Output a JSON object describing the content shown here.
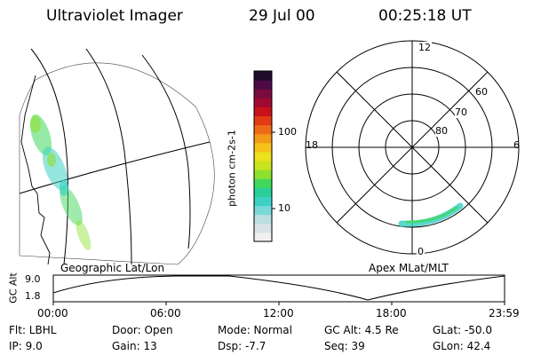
{
  "header": {
    "instrument": "Ultraviolet Imager",
    "date": "29 Jul 00",
    "time": "00:25:18 UT"
  },
  "colorbar": {
    "unit_label": "photon cm-2s-1",
    "ticks": [
      "100",
      "10"
    ],
    "colors": [
      "#f0f0f0",
      "#d8e4e6",
      "#b9dfe3",
      "#7ad9d6",
      "#3dd1c4",
      "#28cf98",
      "#3fd85c",
      "#8ee02f",
      "#c8e41f",
      "#ece11b",
      "#f6c21a",
      "#f39b19",
      "#ed6a16",
      "#e23a13",
      "#c9101b",
      "#a00a32",
      "#7a0a40",
      "#4d0a44",
      "#1f0b2a"
    ]
  },
  "geo_panel": {
    "label": "Geographic Lat/Lon"
  },
  "polar_panel": {
    "label": "Apex MLat/MLT",
    "mlt_labels": {
      "top": "12",
      "left": "18",
      "right": "6",
      "bottom": "0"
    },
    "lat_labels": [
      "60",
      "70",
      "80"
    ]
  },
  "altitude_plot": {
    "axis_title": "GC Alt",
    "y_ticks": [
      "9.0",
      "1.8"
    ],
    "x_ticks": [
      "00:00",
      "06:00",
      "12:00",
      "18:00",
      "23:59"
    ]
  },
  "info": {
    "flt": "Flt: LBHL",
    "ip": "IP: 9.0",
    "door": "Door: Open",
    "gain": "Gain: 13",
    "mode": "Mode: Normal",
    "dsp": "Dsp: -7.7",
    "gc_alt": "GC Alt: 4.5 Re",
    "seq": "Seq: 39",
    "glat": "GLat: -50.0",
    "glon": "GLon: 42.4"
  }
}
